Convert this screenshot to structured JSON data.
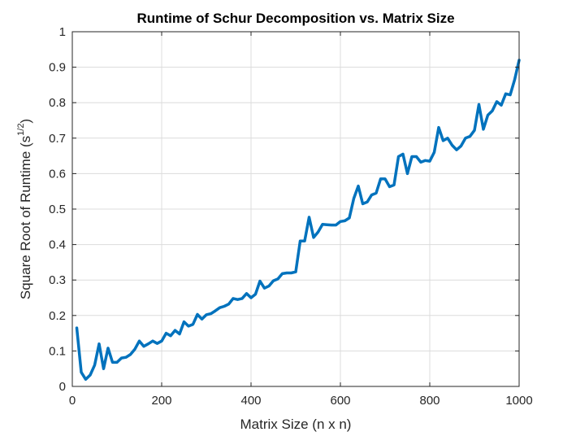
{
  "chart_data": {
    "type": "line",
    "title": "Runtime of Schur Decomposition vs. Matrix Size",
    "xlabel": "Matrix Size (n x n)",
    "ylabel": {
      "main": "Square  Root  of  Runtime  (s",
      "sup": "1/2",
      "close": ")"
    },
    "xlim": [
      0,
      1000
    ],
    "ylim": [
      0,
      1
    ],
    "xticks": [
      0,
      200,
      400,
      600,
      800,
      1000
    ],
    "xtick_labels": [
      "0",
      "200",
      "400",
      "600",
      "800",
      "1000"
    ],
    "yticks": [
      0,
      0.1,
      0.2,
      0.3,
      0.4,
      0.5,
      0.6,
      0.7,
      0.8,
      0.9,
      1
    ],
    "ytick_labels": [
      "0",
      "0.1",
      "0.2",
      "0.3",
      "0.4",
      "0.5",
      "0.6",
      "0.7",
      "0.8",
      "0.9",
      "1"
    ],
    "grid": true,
    "line_color": "#0072BD",
    "series": [
      {
        "x": [
          10,
          20,
          30,
          40,
          50,
          60,
          70,
          80,
          90,
          100,
          110,
          120,
          130,
          140,
          150,
          160,
          170,
          180,
          190,
          200,
          210,
          220,
          230,
          240,
          250,
          260,
          270,
          280,
          290,
          300,
          310,
          320,
          330,
          340,
          350,
          360,
          370,
          380,
          390,
          400,
          410,
          420,
          430,
          440,
          450,
          460,
          470,
          480,
          490,
          500,
          510,
          520,
          530,
          540,
          550,
          560,
          570,
          580,
          590,
          600,
          610,
          620,
          630,
          640,
          650,
          660,
          670,
          680,
          690,
          700,
          710,
          720,
          730,
          740,
          750,
          760,
          770,
          780,
          790,
          800,
          810,
          820,
          830,
          840,
          850,
          860,
          870,
          880,
          890,
          900,
          910,
          920,
          930,
          940,
          950,
          960,
          970,
          980,
          990,
          1000
        ],
        "y": [
          0.165,
          0.04,
          0.02,
          0.032,
          0.06,
          0.12,
          0.05,
          0.108,
          0.068,
          0.068,
          0.08,
          0.082,
          0.09,
          0.105,
          0.128,
          0.113,
          0.12,
          0.128,
          0.121,
          0.128,
          0.15,
          0.143,
          0.158,
          0.148,
          0.182,
          0.17,
          0.175,
          0.203,
          0.19,
          0.202,
          0.205,
          0.213,
          0.222,
          0.226,
          0.232,
          0.248,
          0.245,
          0.248,
          0.262,
          0.25,
          0.26,
          0.297,
          0.277,
          0.283,
          0.298,
          0.303,
          0.318,
          0.32,
          0.32,
          0.323,
          0.41,
          0.41,
          0.477,
          0.42,
          0.435,
          0.457,
          0.456,
          0.455,
          0.455,
          0.465,
          0.467,
          0.475,
          0.53,
          0.565,
          0.515,
          0.52,
          0.54,
          0.545,
          0.585,
          0.585,
          0.563,
          0.568,
          0.648,
          0.655,
          0.6,
          0.648,
          0.648,
          0.632,
          0.637,
          0.635,
          0.66,
          0.73,
          0.693,
          0.7,
          0.68,
          0.667,
          0.678,
          0.7,
          0.705,
          0.722,
          0.795,
          0.725,
          0.765,
          0.777,
          0.803,
          0.793,
          0.825,
          0.822,
          0.865,
          0.92
        ]
      }
    ]
  }
}
